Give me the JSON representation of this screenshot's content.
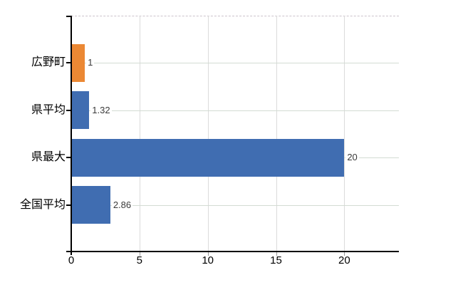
{
  "chart_data": {
    "type": "bar",
    "orientation": "horizontal",
    "title": "",
    "xlabel": "",
    "ylabel": "",
    "categories": [
      "広野町",
      "県平均",
      "県最大",
      "全国平均"
    ],
    "values": [
      1,
      1.32,
      20,
      2.86
    ],
    "value_labels": [
      "1",
      "1.32",
      "20",
      "2.86"
    ],
    "bar_colors": [
      "#EB8834",
      "#406DB1",
      "#406DB1",
      "#406DB1"
    ],
    "x_tick_labels": [
      "0",
      "5",
      "10",
      "15",
      "20"
    ],
    "x_tick_values": [
      0,
      5,
      10,
      15,
      20
    ],
    "xlim": [
      0,
      24
    ],
    "grid": true,
    "legend": false,
    "value_labels_shown": true,
    "colors": {
      "bar_highlight": "#EB8834",
      "bar_default": "#406DB1",
      "axis": "#000000",
      "grid_vertical": "#DBDBDB",
      "grid_horizontal": "#D3DBD3",
      "top_border_dashed": "#CDC3CC",
      "bottom_tick": "#999999",
      "category_text": "#000000",
      "value_text": "#3A3A3A",
      "background": "#FFFFFF"
    }
  }
}
